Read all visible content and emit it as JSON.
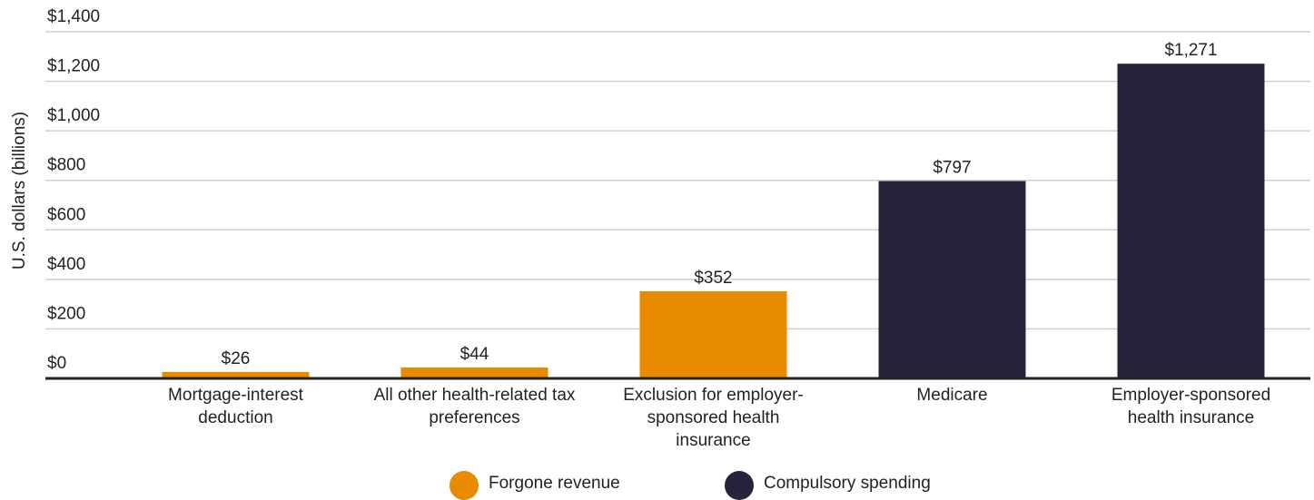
{
  "chart_data": {
    "type": "bar",
    "y_label": "U.S. dollars (billions)",
    "categories": [
      "Mortgage-interest deduction",
      "All other health-related tax preferences",
      "Exclusion for employer-sponsored health insurance",
      "Medicare",
      "Employer-sponsored health insurance"
    ],
    "series": [
      {
        "name": "Forgone revenue",
        "color": "#e98b00",
        "values": [
          26,
          44,
          352,
          null,
          null
        ],
        "value_labels": [
          "$26",
          "$44",
          "$352",
          null,
          null
        ]
      },
      {
        "name": "Compulsory spending",
        "color": "#28233b",
        "values": [
          null,
          null,
          null,
          797,
          1271
        ],
        "value_labels": [
          null,
          null,
          null,
          "$797",
          "$1,271"
        ]
      }
    ],
    "ylim": [
      0,
      1400
    ],
    "yticks": [
      {
        "value": 0,
        "label": "$0"
      },
      {
        "value": 200,
        "label": "$200"
      },
      {
        "value": 400,
        "label": "$400"
      },
      {
        "value": 600,
        "label": "$600"
      },
      {
        "value": 800,
        "label": "$800"
      },
      {
        "value": 1000,
        "label": "$1,000"
      },
      {
        "value": 1200,
        "label": "$1,200"
      },
      {
        "value": 1400,
        "label": "$1,400"
      }
    ],
    "grid": true
  }
}
